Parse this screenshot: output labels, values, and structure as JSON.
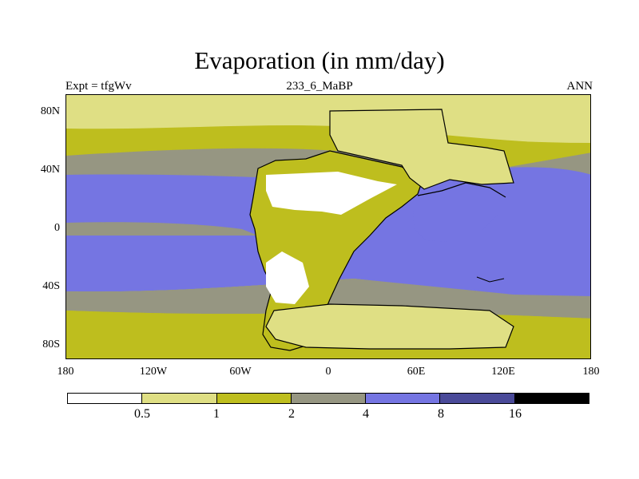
{
  "title": "Evaporation (in mm/day)",
  "subtitle_left": "Expt = tfgWv",
  "subtitle_center": "233_6_MaBP",
  "subtitle_right": "ANN",
  "y_ticks": [
    "80N",
    "40N",
    "0",
    "40S",
    "80S"
  ],
  "x_ticks": [
    "180",
    "120W",
    "60W",
    "0",
    "60E",
    "120E",
    "180"
  ],
  "legend": {
    "colors": [
      "#ffffff",
      "#dfdf84",
      "#bebe1e",
      "#969682",
      "#7575e2",
      "#4a4a99",
      "#000000"
    ],
    "labels": [
      "0.5",
      "1",
      "2",
      "4",
      "8",
      "16"
    ]
  },
  "colors": {
    "ocean_low": "#dfdf84",
    "ocean_mid": "#bebe1e",
    "ocean_grey": "#969682",
    "ocean_high": "#7575e2",
    "land_white": "#ffffff",
    "land_pale": "#dfdf84"
  }
}
